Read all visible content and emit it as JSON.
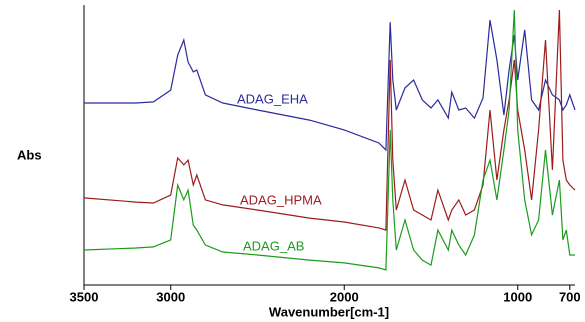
{
  "chart_data": {
    "type": "line",
    "x_label": "Wavenumber[cm-1]",
    "y_label": "Abs",
    "x": [
      3500,
      3200,
      3100,
      3000,
      2960,
      2925,
      2900,
      2870,
      2850,
      2800,
      2700,
      2500,
      2200,
      2000,
      1800,
      1760,
      1735,
      1720,
      1700,
      1650,
      1600,
      1550,
      1500,
      1460,
      1400,
      1380,
      1340,
      1300,
      1250,
      1200,
      1160,
      1120,
      1080,
      1050,
      1020,
      1000,
      960,
      920,
      880,
      840,
      800,
      760,
      740,
      720,
      700,
      670
    ],
    "series": [
      {
        "name": "ADAG_EHA",
        "color": "#2b2b9c",
        "values": [
          65,
          65,
          65.4,
          69.6,
          82.1,
          87.5,
          79.6,
          76.1,
          76.8,
          67.9,
          65,
          62.5,
          58.9,
          55.4,
          50.7,
          48.2,
          93.9,
          73.2,
          62.5,
          70.4,
          73.2,
          66.1,
          63.2,
          66.1,
          59.6,
          68.9,
          62.5,
          63.2,
          59.6,
          66.8,
          94.6,
          80.4,
          60.7,
          76.8,
          89.3,
          73.2,
          91.1,
          66.1,
          62.5,
          73.2,
          67.9,
          66.1,
          62.5,
          64.3,
          67.9,
          62.5
        ]
      },
      {
        "name": "ADAG_HPMA",
        "color": "#9c1c1c",
        "values": [
          31.1,
          29.6,
          29.3,
          32.1,
          45.4,
          42.9,
          44.6,
          35.7,
          39.3,
          30.4,
          28.6,
          26.8,
          23.9,
          22.5,
          20.4,
          19.6,
          80.4,
          44.6,
          26.8,
          37.5,
          26.8,
          25,
          23.2,
          33.9,
          23.2,
          26.8,
          30.4,
          25,
          26.8,
          35.7,
          62.5,
          37.5,
          55.4,
          66.1,
          80.4,
          62.5,
          48.2,
          30.4,
          55.4,
          87.5,
          41.1,
          98.2,
          44.6,
          37.5,
          35.7,
          33.9
        ]
      },
      {
        "name": "ADAG_AB",
        "color": "#1c9c1c",
        "values": [
          12.5,
          13.2,
          13.6,
          16.1,
          35.7,
          30.4,
          33.9,
          21.4,
          19.6,
          14.3,
          11.8,
          10.7,
          8.9,
          7.9,
          6.1,
          5.4,
          55.4,
          30.4,
          12.5,
          23.2,
          12.5,
          8.9,
          7.1,
          19.6,
          12.5,
          19.6,
          14.3,
          10.7,
          17.9,
          37.5,
          44.6,
          30.4,
          48.2,
          62.5,
          98.2,
          55.4,
          30.4,
          17.9,
          23.2,
          48.2,
          25,
          37.5,
          16.1,
          19.6,
          10.7,
          10.7
        ]
      }
    ],
    "xlim": [
      3500,
      670
    ],
    "ylim": [
      0,
      100
    ],
    "xticks": [
      3500,
      3000,
      2000,
      1000,
      700
    ]
  }
}
